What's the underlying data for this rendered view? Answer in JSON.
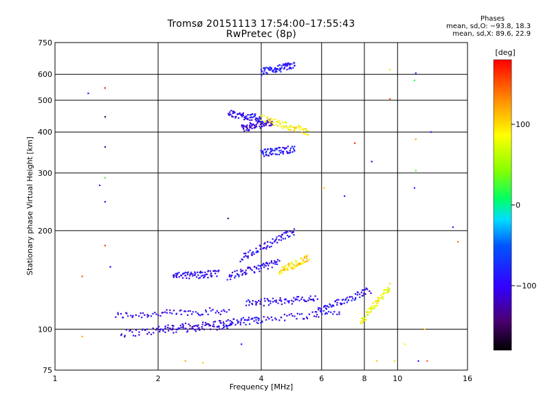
{
  "header": {
    "title_line1": "Tromsø 20151113 17:54:00–17:55:43",
    "title_line2": "RwPretec (8p)"
  },
  "phases": {
    "title": "Phases",
    "line1": "mean, sd,O: −93.8, 18.3",
    "line2": "mean, sd,X:  89.6, 22.9"
  },
  "chart_data": {
    "type": "scatter",
    "x_scale": "log",
    "y_scale": "log",
    "xlabel": "Frequency [MHz]",
    "ylabel": "Stationary phase Virtual Height [km]",
    "xlim": [
      1,
      16
    ],
    "ylim": [
      75,
      750
    ],
    "x_ticks": [
      {
        "value": 1,
        "label": "1"
      },
      {
        "value": 2,
        "label": "2"
      },
      {
        "value": 4,
        "label": "4"
      },
      {
        "value": 6,
        "label": "6"
      },
      {
        "value": 8,
        "label": "8"
      },
      {
        "value": 10,
        "label": "10"
      },
      {
        "value": 16,
        "label": "16"
      }
    ],
    "y_ticks": [
      {
        "value": 75,
        "label": "75"
      },
      {
        "value": 100,
        "label": "100"
      },
      {
        "value": 200,
        "label": "200"
      },
      {
        "value": 300,
        "label": "300"
      },
      {
        "value": 400,
        "label": "400"
      },
      {
        "value": 500,
        "label": "500"
      },
      {
        "value": 600,
        "label": "600"
      },
      {
        "value": 750,
        "label": "750"
      }
    ],
    "grid": true,
    "colorbar": {
      "label": "[deg]",
      "range": [
        -180,
        180
      ],
      "ticks": [
        {
          "value": 100,
          "label": "100"
        },
        {
          "value": 0,
          "label": "0"
        },
        {
          "value": -100,
          "label": "−100"
        }
      ]
    },
    "traces": [
      {
        "x0": 1.5,
        "x1": 3.2,
        "h0": 110,
        "h1": 114,
        "phase": -100
      },
      {
        "x0": 1.55,
        "x1": 3.3,
        "h0": 97,
        "h1": 103,
        "phase": -110
      },
      {
        "x0": 2.0,
        "x1": 4.0,
        "h0": 100,
        "h1": 107,
        "phase": -105
      },
      {
        "x0": 3.0,
        "x1": 6.8,
        "h0": 104,
        "h1": 113,
        "phase": -95
      },
      {
        "x0": 3.6,
        "x1": 5.8,
        "h0": 120,
        "h1": 124,
        "phase": -100
      },
      {
        "x0": 5.8,
        "x1": 8.3,
        "h0": 113,
        "h1": 132,
        "phase": -95
      },
      {
        "x0": 3.2,
        "x1": 4.5,
        "h0": 145,
        "h1": 160,
        "phase": -100
      },
      {
        "x0": 3.5,
        "x1": 5.0,
        "h0": 165,
        "h1": 200,
        "phase": -95
      },
      {
        "x0": 3.5,
        "x1": 4.3,
        "h0": 410,
        "h1": 430,
        "phase": -110
      },
      {
        "x0": 3.2,
        "x1": 4.0,
        "h0": 455,
        "h1": 440,
        "phase": -95
      },
      {
        "x0": 4.0,
        "x1": 5.0,
        "h0": 345,
        "h1": 355,
        "phase": -90
      },
      {
        "x0": 4.0,
        "x1": 5.0,
        "h0": 610,
        "h1": 640,
        "phase": -90
      },
      {
        "x0": 2.2,
        "x1": 3.0,
        "h0": 145,
        "h1": 148,
        "phase": -100
      },
      {
        "x0": 4.0,
        "x1": 5.5,
        "h0": 440,
        "h1": 400,
        "phase": 90
      },
      {
        "x0": 4.5,
        "x1": 5.5,
        "h0": 150,
        "h1": 165,
        "phase": 100
      },
      {
        "x0": 7.8,
        "x1": 9.5,
        "h0": 105,
        "h1": 135,
        "phase": 80
      }
    ],
    "scatter": [
      {
        "x": 1.25,
        "y": 525,
        "phase": -95
      },
      {
        "x": 1.4,
        "y": 545,
        "phase": 170
      },
      {
        "x": 1.4,
        "y": 445,
        "phase": -150
      },
      {
        "x": 1.4,
        "y": 360,
        "phase": -120
      },
      {
        "x": 1.4,
        "y": 290,
        "phase": 20
      },
      {
        "x": 1.35,
        "y": 275,
        "phase": -80
      },
      {
        "x": 1.4,
        "y": 245,
        "phase": -95
      },
      {
        "x": 1.4,
        "y": 180,
        "phase": 160
      },
      {
        "x": 1.45,
        "y": 155,
        "phase": -100
      },
      {
        "x": 1.2,
        "y": 145,
        "phase": 150
      },
      {
        "x": 1.2,
        "y": 95,
        "phase": 120
      },
      {
        "x": 3.2,
        "y": 218,
        "phase": -140
      },
      {
        "x": 2.4,
        "y": 80,
        "phase": 120
      },
      {
        "x": 2.7,
        "y": 79,
        "phase": 110
      },
      {
        "x": 3.5,
        "y": 90,
        "phase": -100
      },
      {
        "x": 6.1,
        "y": 270,
        "phase": 110
      },
      {
        "x": 7.0,
        "y": 255,
        "phase": -95
      },
      {
        "x": 7.5,
        "y": 370,
        "phase": 170
      },
      {
        "x": 8.4,
        "y": 325,
        "phase": -110
      },
      {
        "x": 9.5,
        "y": 620,
        "phase": 100
      },
      {
        "x": 9.5,
        "y": 505,
        "phase": 150
      },
      {
        "x": 11.3,
        "y": 605,
        "phase": -90
      },
      {
        "x": 11.2,
        "y": 575,
        "phase": 10
      },
      {
        "x": 11.3,
        "y": 380,
        "phase": 120
      },
      {
        "x": 12.5,
        "y": 400,
        "phase": -90
      },
      {
        "x": 11.3,
        "y": 305,
        "phase": 30
      },
      {
        "x": 11.2,
        "y": 270,
        "phase": -90
      },
      {
        "x": 14.5,
        "y": 205,
        "phase": -80
      },
      {
        "x": 15.0,
        "y": 185,
        "phase": 140
      },
      {
        "x": 12.0,
        "y": 100,
        "phase": 100
      },
      {
        "x": 12.2,
        "y": 80,
        "phase": 150
      },
      {
        "x": 11.5,
        "y": 80,
        "phase": -100
      },
      {
        "x": 10.5,
        "y": 90,
        "phase": 80
      },
      {
        "x": 9.8,
        "y": 80,
        "phase": 100
      },
      {
        "x": 8.7,
        "y": 80,
        "phase": 110
      },
      {
        "x": 7.0,
        "y": 75,
        "phase": -120
      }
    ]
  }
}
